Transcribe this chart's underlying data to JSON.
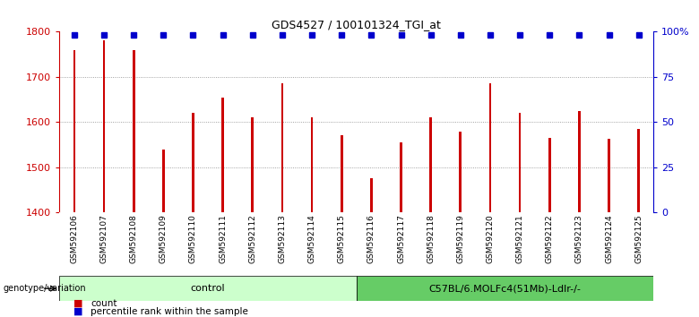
{
  "title": "GDS4527 / 100101324_TGI_at",
  "samples": [
    "GSM592106",
    "GSM592107",
    "GSM592108",
    "GSM592109",
    "GSM592110",
    "GSM592111",
    "GSM592112",
    "GSM592113",
    "GSM592114",
    "GSM592115",
    "GSM592116",
    "GSM592117",
    "GSM592118",
    "GSM592119",
    "GSM592120",
    "GSM592121",
    "GSM592122",
    "GSM592123",
    "GSM592124",
    "GSM592125"
  ],
  "counts": [
    1760,
    1780,
    1760,
    1540,
    1620,
    1655,
    1610,
    1685,
    1610,
    1570,
    1475,
    1555,
    1610,
    1578,
    1685,
    1620,
    1565,
    1625,
    1562,
    1585
  ],
  "percentile_vals": [
    98,
    98,
    98,
    98,
    98,
    98,
    98,
    98,
    98,
    98,
    98,
    98,
    98,
    98,
    98,
    98,
    98,
    98,
    98,
    98
  ],
  "ylim_left": [
    1400,
    1800
  ],
  "ylim_right": [
    0,
    100
  ],
  "yticks_left": [
    1400,
    1500,
    1600,
    1700,
    1800
  ],
  "yticks_right": [
    0,
    25,
    50,
    75,
    100
  ],
  "ytick_labels_right": [
    "0",
    "25",
    "50",
    "75",
    "100%"
  ],
  "bar_color": "#cc0000",
  "dot_color": "#0000cc",
  "bar_width": 0.08,
  "groups": [
    {
      "label": "control",
      "start": 0,
      "end": 10,
      "color": "#ccffcc"
    },
    {
      "label": "C57BL/6.MOLFc4(51Mb)-Ldlr-/-",
      "start": 10,
      "end": 20,
      "color": "#66cc66"
    }
  ],
  "genotype_label": "genotype/variation",
  "legend_count_label": "count",
  "legend_percentile_label": "percentile rank within the sample",
  "background_color": "#ffffff",
  "plot_bg_color": "#ffffff",
  "grid_color": "#888888",
  "tick_label_area_color": "#cccccc",
  "spine_color": "#aaaaaa"
}
